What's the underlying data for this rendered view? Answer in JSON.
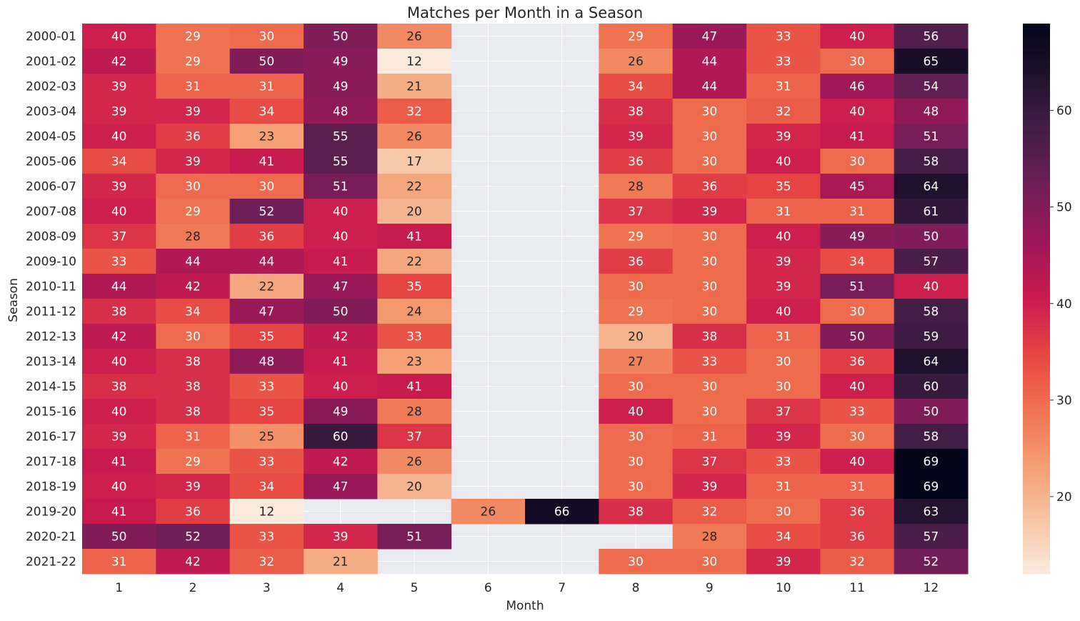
{
  "chart_data": {
    "type": "heatmap",
    "title": "Matches per Month in a Season",
    "xlabel": "Month",
    "ylabel": "Season",
    "x": [
      "1",
      "2",
      "3",
      "4",
      "5",
      "6",
      "7",
      "8",
      "9",
      "10",
      "11",
      "12"
    ],
    "y": [
      "2000-01",
      "2001-02",
      "2002-03",
      "2003-04",
      "2004-05",
      "2005-06",
      "2006-07",
      "2007-08",
      "2008-09",
      "2009-10",
      "2010-11",
      "2011-12",
      "2012-13",
      "2013-14",
      "2014-15",
      "2015-16",
      "2016-17",
      "2017-18",
      "2018-19",
      "2019-20",
      "2020-21",
      "2021-22"
    ],
    "values": [
      [
        40,
        29,
        30,
        50,
        26,
        null,
        null,
        29,
        47,
        33,
        40,
        56
      ],
      [
        42,
        29,
        50,
        49,
        12,
        null,
        null,
        26,
        44,
        33,
        30,
        65
      ],
      [
        39,
        31,
        31,
        49,
        21,
        null,
        null,
        34,
        44,
        31,
        46,
        54
      ],
      [
        39,
        39,
        34,
        48,
        32,
        null,
        null,
        38,
        30,
        32,
        40,
        48
      ],
      [
        40,
        36,
        23,
        55,
        26,
        null,
        null,
        39,
        30,
        39,
        41,
        51
      ],
      [
        34,
        39,
        41,
        55,
        17,
        null,
        null,
        36,
        30,
        40,
        30,
        58
      ],
      [
        39,
        30,
        30,
        51,
        22,
        null,
        null,
        28,
        36,
        35,
        45,
        64
      ],
      [
        40,
        29,
        52,
        40,
        20,
        null,
        null,
        37,
        39,
        31,
        31,
        61
      ],
      [
        37,
        28,
        36,
        40,
        41,
        null,
        null,
        29,
        30,
        40,
        49,
        50
      ],
      [
        33,
        44,
        44,
        41,
        22,
        null,
        null,
        36,
        30,
        39,
        34,
        57
      ],
      [
        44,
        42,
        22,
        47,
        35,
        null,
        null,
        30,
        30,
        39,
        51,
        40
      ],
      [
        38,
        34,
        47,
        50,
        24,
        null,
        null,
        29,
        30,
        40,
        30,
        58
      ],
      [
        42,
        30,
        35,
        42,
        33,
        null,
        null,
        20,
        38,
        31,
        50,
        59
      ],
      [
        40,
        38,
        48,
        41,
        23,
        null,
        null,
        27,
        33,
        30,
        36,
        64
      ],
      [
        38,
        38,
        33,
        40,
        41,
        null,
        null,
        30,
        30,
        30,
        40,
        60
      ],
      [
        40,
        38,
        35,
        49,
        28,
        null,
        null,
        40,
        30,
        37,
        33,
        50
      ],
      [
        39,
        31,
        25,
        60,
        37,
        null,
        null,
        30,
        31,
        39,
        30,
        58
      ],
      [
        41,
        29,
        33,
        42,
        26,
        null,
        null,
        30,
        37,
        33,
        40,
        69
      ],
      [
        40,
        39,
        34,
        47,
        20,
        null,
        null,
        30,
        39,
        31,
        31,
        69
      ],
      [
        41,
        36,
        12,
        null,
        null,
        26,
        66,
        38,
        32,
        30,
        36,
        63
      ],
      [
        50,
        52,
        33,
        39,
        51,
        null,
        null,
        null,
        28,
        34,
        36,
        57
      ],
      [
        31,
        42,
        32,
        21,
        null,
        null,
        null,
        30,
        30,
        39,
        32,
        52
      ]
    ],
    "vmin": 12,
    "vmax": 69,
    "colorbar_ticks": [
      20,
      30,
      40,
      50,
      60
    ],
    "colormap": "rocket_r",
    "missing_color": "#eaeaf2",
    "grid": true
  }
}
